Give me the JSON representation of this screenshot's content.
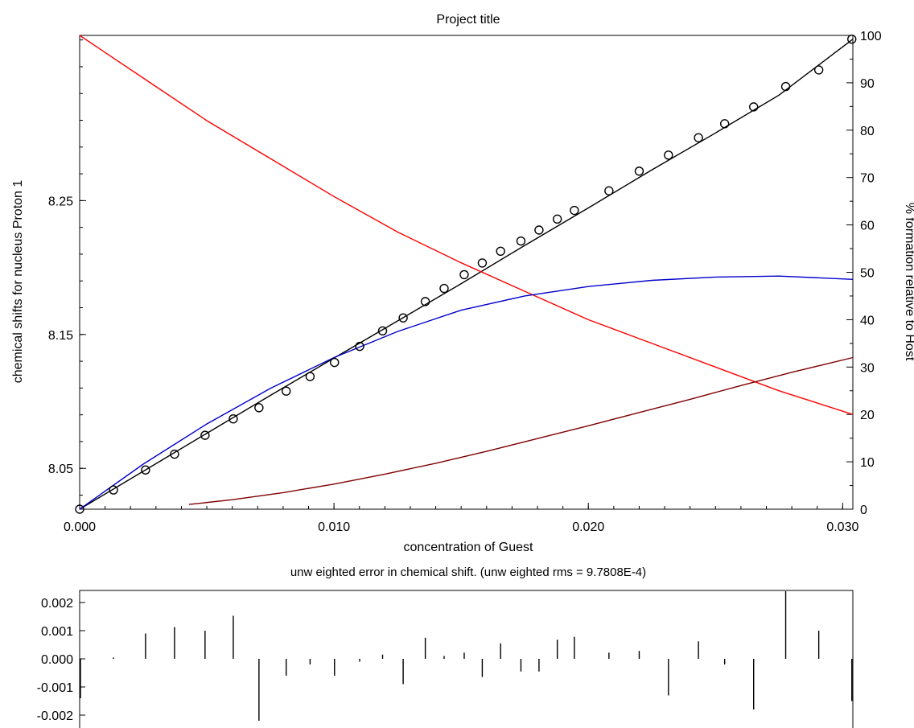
{
  "chart_data": [
    {
      "type": "line",
      "title": "Project title",
      "xlabel": "concentration of Guest",
      "ylabel": "chemical shifts for nucleus Proton 1",
      "y2label": "% formation relative to Host",
      "xlim": [
        0.0,
        0.0304
      ],
      "ylim": [
        8.0195,
        8.3734
      ],
      "y2lim": [
        0,
        100
      ],
      "x_ticks": [
        0.0,
        0.01,
        0.02,
        0.03
      ],
      "x_tick_labels": [
        "0.000",
        "0.010",
        "0.020",
        "0.030"
      ],
      "y_ticks": [
        8.05,
        8.15,
        8.25
      ],
      "y_tick_labels": [
        "8.05",
        "8.15",
        "8.25"
      ],
      "y2_ticks": [
        0,
        10,
        20,
        30,
        40,
        50,
        60,
        70,
        80,
        90,
        100
      ],
      "y2_tick_labels": [
        "0",
        "10",
        "20",
        "30",
        "40",
        "50",
        "60",
        "70",
        "80",
        "90",
        "100"
      ],
      "grid": false,
      "legend": "none",
      "colors": {
        "fit": "#000000",
        "host": "#ff0000",
        "complex1": "#0000cc",
        "complex2": "#800000"
      },
      "observed_points": {
        "x": [
          0.0,
          0.00133,
          0.00259,
          0.00373,
          0.00493,
          0.00604,
          0.00705,
          0.00812,
          0.00906,
          0.01002,
          0.01101,
          0.01191,
          0.01272,
          0.01359,
          0.01433,
          0.01512,
          0.01583,
          0.01655,
          0.01735,
          0.01806,
          0.01878,
          0.01945,
          0.02081,
          0.022,
          0.02315,
          0.02433,
          0.02536,
          0.0265,
          0.02776,
          0.02906,
          0.03036
        ],
        "y": [
          8.0195,
          8.0339,
          8.0488,
          8.0606,
          8.0747,
          8.087,
          8.0953,
          8.1077,
          8.1186,
          8.1291,
          8.1411,
          8.1527,
          8.1624,
          8.1746,
          8.1844,
          8.1947,
          8.2034,
          8.2122,
          8.2198,
          8.228,
          8.2362,
          8.2427,
          8.2573,
          8.272,
          8.284,
          8.297,
          8.3074,
          8.32,
          8.3352,
          8.3476,
          8.3706
        ]
      },
      "series": [
        {
          "axis": "left",
          "x": [
            0.0,
            0.0025,
            0.005,
            0.0075,
            0.01,
            0.0125,
            0.015,
            0.0175,
            0.02,
            0.0225,
            0.025,
            0.0275,
            0.0304
          ],
          "y": [
            8.0195,
            8.0478,
            8.0762,
            8.1045,
            8.1324,
            8.1601,
            8.188,
            8.2165,
            8.2445,
            8.273,
            8.3005,
            8.3288,
            8.3706
          ]
        },
        {
          "axis": "right",
          "x": [
            0.0,
            0.0025,
            0.005,
            0.0075,
            0.01,
            0.0125,
            0.015,
            0.0175,
            0.02,
            0.0225,
            0.025,
            0.0275,
            0.0304
          ],
          "y": [
            100,
            91,
            82,
            74,
            66,
            58.5,
            52,
            46,
            40,
            35,
            30,
            25,
            20
          ]
        },
        {
          "axis": "right",
          "x": [
            0.0,
            0.0025,
            0.005,
            0.0075,
            0.01,
            0.0125,
            0.015,
            0.0175,
            0.02,
            0.0225,
            0.025,
            0.0275,
            0.0304
          ],
          "y": [
            0,
            9.5,
            18,
            25.5,
            32,
            37.5,
            42,
            45,
            47,
            48.3,
            49,
            49.2,
            48.5
          ]
        },
        {
          "axis": "right",
          "x": [
            0.0043,
            0.006,
            0.008,
            0.01,
            0.012,
            0.014,
            0.016,
            0.018,
            0.02,
            0.022,
            0.024,
            0.026,
            0.028,
            0.0304
          ],
          "y": [
            1,
            2,
            3.5,
            5.3,
            7.4,
            9.7,
            12.2,
            14.9,
            17.6,
            20.4,
            23.2,
            26.1,
            28.9,
            32
          ]
        }
      ]
    },
    {
      "type": "bar",
      "title": "unw eighted error in chemical shift. (unw eighted rms = 9.7808E-4)",
      "ylim": [
        -0.00238,
        0.00238
      ],
      "y_ticks": [
        0.002,
        0.001,
        0.0,
        -0.001,
        -0.002
      ],
      "y_tick_labels": [
        "0.002",
        "0.001",
        "0.000",
        "-0.001",
        "-0.002"
      ],
      "grid": false,
      "legend": "none",
      "x": [
        0.0,
        0.00133,
        0.00259,
        0.00373,
        0.00493,
        0.00604,
        0.00705,
        0.00812,
        0.00906,
        0.01002,
        0.01101,
        0.01191,
        0.01272,
        0.01359,
        0.01433,
        0.01512,
        0.01583,
        0.01655,
        0.01735,
        0.01806,
        0.01878,
        0.01945,
        0.02081,
        0.022,
        0.02315,
        0.02433,
        0.02536,
        0.0265,
        0.02776,
        0.02906,
        0.03036
      ],
      "values": [
        -0.0014,
        5e-05,
        0.0009,
        0.00113,
        0.001,
        0.00153,
        -0.0022,
        -0.0006,
        -0.0002,
        -0.0006,
        -0.0001,
        0.00015,
        -0.0009,
        0.00075,
        0.0001,
        0.00022,
        -0.00065,
        0.00055,
        -0.00045,
        -0.00045,
        0.00068,
        0.00078,
        0.00022,
        0.00028,
        -0.0013,
        0.00062,
        -0.0002,
        -0.0018,
        0.0024,
        0.001,
        -0.0015
      ]
    }
  ]
}
